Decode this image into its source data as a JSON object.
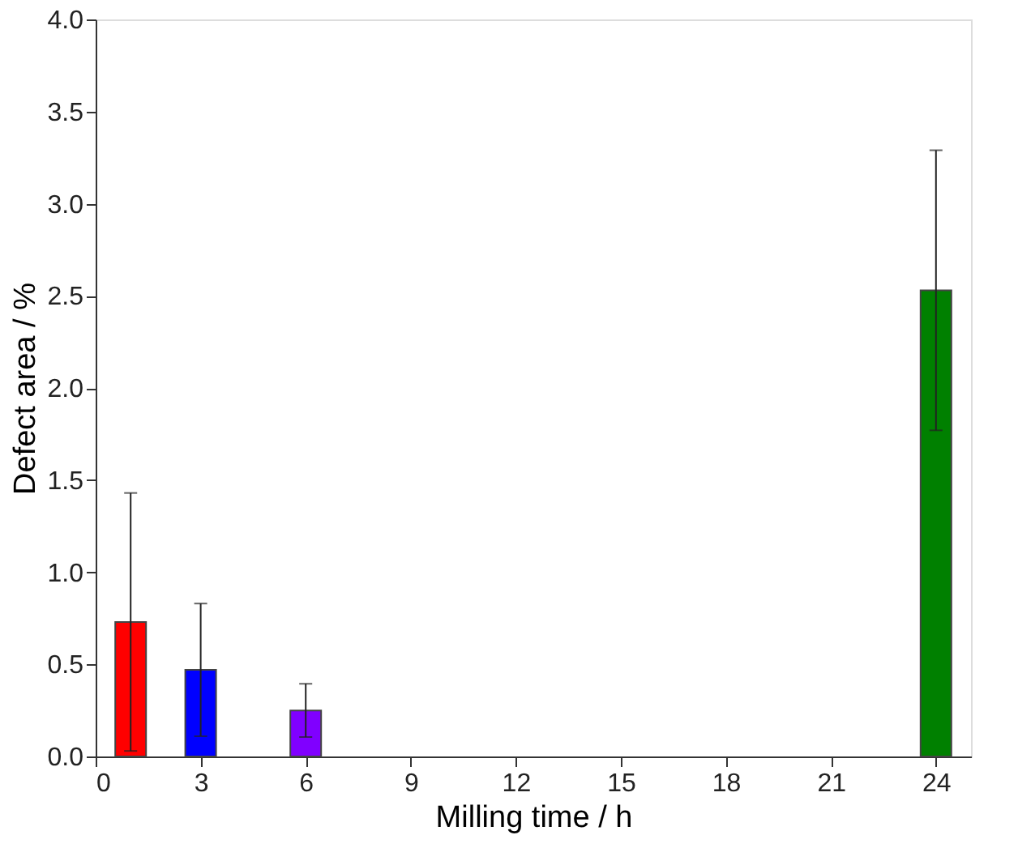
{
  "chart_data": {
    "type": "bar",
    "xlabel": "Milling time / h",
    "ylabel": "Defect area / %",
    "x": [
      1,
      3,
      6,
      24
    ],
    "values": [
      0.73,
      0.47,
      0.25,
      2.53
    ],
    "errors": [
      0.7,
      0.36,
      0.145,
      0.76
    ],
    "colors": [
      "#ff0000",
      "#0000ff",
      "#8000ff",
      "#008000"
    ],
    "xlim": [
      0,
      25
    ],
    "xticks": [
      0,
      3,
      6,
      9,
      12,
      15,
      18,
      21,
      24
    ],
    "ylim": [
      0,
      4
    ],
    "yticks": [
      {
        "value": 0,
        "label": "0.0"
      },
      0.5,
      {
        "value": 1,
        "label": "1.0"
      },
      1.5,
      {
        "value": 2,
        "label": "2.0"
      },
      2.5,
      {
        "value": 3,
        "label": "3.0"
      },
      3.5,
      {
        "value": 4,
        "label": "4.0"
      }
    ],
    "grid": false
  }
}
